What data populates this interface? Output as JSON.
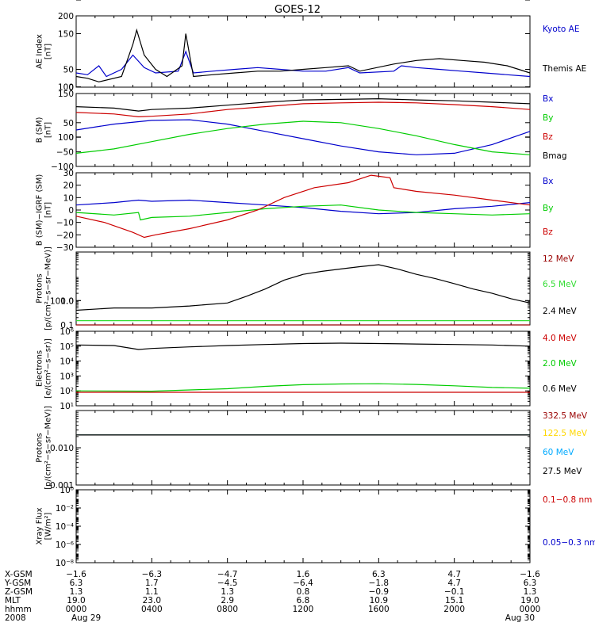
{
  "title": "GOES-12",
  "colors": {
    "black": "#000000",
    "blue": "#0000cc",
    "red": "#cc0000",
    "green": "#00cc00",
    "darkred": "#990000",
    "lightgreen": "#33dd33",
    "cyan": "#00aaff",
    "gold": "#ffd700"
  },
  "chart_data": [
    {
      "type": "line",
      "ylabel": "AE Index\n[nT]",
      "ylim": [
        0,
        200
      ],
      "yticks": [
        "0",
        "50",
        "100",
        "150",
        "200"
      ],
      "series": [
        {
          "name": "Kyoto AE",
          "color": "#0000cc",
          "values": [
            [
              0,
              40
            ],
            [
              0.6,
              35
            ],
            [
              1.2,
              60
            ],
            [
              1.6,
              30
            ],
            [
              2.4,
              50
            ],
            [
              3,
              90
            ],
            [
              3.6,
              55
            ],
            [
              4.2,
              40
            ],
            [
              5.4,
              45
            ],
            [
              5.8,
              100
            ],
            [
              6.2,
              40
            ],
            [
              7.2,
              45
            ],
            [
              8.4,
              50
            ],
            [
              9.6,
              55
            ],
            [
              10.8,
              50
            ],
            [
              12,
              45
            ],
            [
              13.2,
              45
            ],
            [
              14.4,
              55
            ],
            [
              15,
              40
            ],
            [
              16.8,
              45
            ],
            [
              17.2,
              60
            ],
            [
              18,
              55
            ],
            [
              19.2,
              50
            ],
            [
              20.4,
              45
            ],
            [
              21.6,
              40
            ],
            [
              22.8,
              35
            ],
            [
              24,
              30
            ]
          ]
        },
        {
          "name": "Themis AE",
          "color": "#000000",
          "values": [
            [
              0,
              30
            ],
            [
              0.6,
              25
            ],
            [
              1.2,
              15
            ],
            [
              2.4,
              30
            ],
            [
              3,
              120
            ],
            [
              3.2,
              160
            ],
            [
              3.6,
              90
            ],
            [
              4.2,
              50
            ],
            [
              4.8,
              30
            ],
            [
              5.6,
              60
            ],
            [
              5.8,
              150
            ],
            [
              6.2,
              30
            ],
            [
              7.2,
              35
            ],
            [
              8.4,
              40
            ],
            [
              9.6,
              45
            ],
            [
              10.8,
              45
            ],
            [
              12,
              50
            ],
            [
              13.2,
              55
            ],
            [
              14.4,
              60
            ],
            [
              15,
              45
            ],
            [
              16.8,
              65
            ],
            [
              18,
              75
            ],
            [
              19.2,
              80
            ],
            [
              20.4,
              75
            ],
            [
              21.6,
              70
            ],
            [
              22.8,
              60
            ],
            [
              24,
              40
            ]
          ]
        }
      ]
    },
    {
      "type": "line",
      "ylabel": "B (SM)\n[nT]",
      "ylim": [
        -100,
        150
      ],
      "yticks": [
        "−100",
        "−50",
        "0",
        "50",
        "100",
        "150"
      ],
      "series": [
        {
          "name": "Bx",
          "color": "#0000cc",
          "values": [
            [
              0,
              25
            ],
            [
              2,
              45
            ],
            [
              4,
              58
            ],
            [
              6,
              60
            ],
            [
              8,
              45
            ],
            [
              10,
              20
            ],
            [
              12,
              -5
            ],
            [
              14,
              -30
            ],
            [
              16,
              -50
            ],
            [
              18,
              -60
            ],
            [
              20,
              -55
            ],
            [
              22,
              -25
            ],
            [
              24,
              20
            ]
          ]
        },
        {
          "name": "By",
          "color": "#00cc00",
          "values": [
            [
              0,
              -55
            ],
            [
              2,
              -40
            ],
            [
              4,
              -15
            ],
            [
              6,
              10
            ],
            [
              8,
              30
            ],
            [
              10,
              45
            ],
            [
              12,
              55
            ],
            [
              14,
              50
            ],
            [
              16,
              30
            ],
            [
              18,
              5
            ],
            [
              20,
              -25
            ],
            [
              22,
              -50
            ],
            [
              24,
              -60
            ]
          ]
        },
        {
          "name": "Bz",
          "color": "#cc0000",
          "values": [
            [
              0,
              85
            ],
            [
              2,
              80
            ],
            [
              3.3,
              70
            ],
            [
              4,
              72
            ],
            [
              6,
              80
            ],
            [
              8,
              95
            ],
            [
              10,
              105
            ],
            [
              12,
              115
            ],
            [
              14,
              118
            ],
            [
              16,
              120
            ],
            [
              18,
              118
            ],
            [
              20,
              112
            ],
            [
              22,
              105
            ],
            [
              24,
              95
            ]
          ]
        },
        {
          "name": "Bmag",
          "color": "#000000",
          "values": [
            [
              0,
              105
            ],
            [
              2,
              100
            ],
            [
              3.3,
              90
            ],
            [
              4,
              95
            ],
            [
              6,
              100
            ],
            [
              8,
              110
            ],
            [
              10,
              120
            ],
            [
              12,
              128
            ],
            [
              14,
              130
            ],
            [
              16,
              132
            ],
            [
              18,
              128
            ],
            [
              20,
              125
            ],
            [
              22,
              120
            ],
            [
              24,
              115
            ]
          ]
        }
      ]
    },
    {
      "type": "line",
      "ylabel": "B (SM)−IGRF (SM)\n[nT]",
      "ylim": [
        -30,
        30
      ],
      "yticks": [
        "−30",
        "−20",
        "−10",
        "0",
        "10",
        "20",
        "30"
      ],
      "series": [
        {
          "name": "Bx",
          "color": "#0000cc",
          "values": [
            [
              0,
              4
            ],
            [
              2,
              6
            ],
            [
              3.3,
              8
            ],
            [
              4,
              7
            ],
            [
              6,
              8
            ],
            [
              8,
              6
            ],
            [
              10,
              4
            ],
            [
              12,
              2
            ],
            [
              14,
              -1
            ],
            [
              16,
              -3
            ],
            [
              18,
              -2
            ],
            [
              20,
              1
            ],
            [
              22,
              3
            ],
            [
              24,
              6
            ]
          ]
        },
        {
          "name": "By",
          "color": "#00cc00",
          "values": [
            [
              0,
              -2
            ],
            [
              2,
              -4
            ],
            [
              3.3,
              -2
            ],
            [
              3.4,
              -8
            ],
            [
              4,
              -6
            ],
            [
              6,
              -5
            ],
            [
              8,
              -2
            ],
            [
              10,
              1
            ],
            [
              12,
              3
            ],
            [
              14,
              4
            ],
            [
              16,
              0
            ],
            [
              18,
              -2
            ],
            [
              20,
              -3
            ],
            [
              22,
              -4
            ],
            [
              24,
              -3
            ]
          ]
        },
        {
          "name": "Bz",
          "color": "#cc0000",
          "values": [
            [
              0,
              -5
            ],
            [
              1.5,
              -10
            ],
            [
              3,
              -18
            ],
            [
              3.6,
              -22
            ],
            [
              4.2,
              -20
            ],
            [
              6,
              -15
            ],
            [
              8,
              -8
            ],
            [
              9.6,
              0
            ],
            [
              11,
              10
            ],
            [
              12.6,
              18
            ],
            [
              14.4,
              22
            ],
            [
              15.6,
              28
            ],
            [
              16.6,
              26
            ],
            [
              16.8,
              18
            ],
            [
              18,
              15
            ],
            [
              20,
              12
            ],
            [
              22,
              8
            ],
            [
              24,
              4
            ]
          ]
        }
      ]
    },
    {
      "type": "line",
      "ylabel": "Protons\n[p/(cm²−s−sr−MeV)]",
      "yscale": "log",
      "ylim": [
        0.1,
        100
      ],
      "yticks": [
        "0.1",
        "1.0",
        "10.0",
        "100.0"
      ],
      "series": [
        {
          "name": "12 MeV",
          "color": "#990000",
          "values": [
            [
              0,
              0.1
            ],
            [
              24,
              0.1
            ]
          ]
        },
        {
          "name": "6.5 MeV",
          "color": "#33dd33",
          "values": [
            [
              0,
              0.15
            ],
            [
              24,
              0.15
            ]
          ]
        },
        {
          "name": "2.4 MeV",
          "color": "#000000",
          "values": [
            [
              0,
              0.4
            ],
            [
              2,
              0.5
            ],
            [
              4,
              0.5
            ],
            [
              6,
              0.6
            ],
            [
              8,
              0.8
            ],
            [
              9,
              1.5
            ],
            [
              10,
              3
            ],
            [
              11,
              7
            ],
            [
              12,
              12
            ],
            [
              13,
              16
            ],
            [
              14,
              20
            ],
            [
              15,
              25
            ],
            [
              16,
              30
            ],
            [
              17,
              20
            ],
            [
              18,
              12
            ],
            [
              19,
              8
            ],
            [
              20,
              5
            ],
            [
              21,
              3
            ],
            [
              22,
              2
            ],
            [
              23,
              1.2
            ],
            [
              24,
              0.8
            ]
          ]
        }
      ]
    },
    {
      "type": "line",
      "ylabel": "Electrons\n[e/(cm²−s−sr)]",
      "yscale": "log",
      "ylim": [
        10,
        1000000
      ],
      "yticks": [
        "10¹",
        "10²",
        "10³",
        "10⁴",
        "10⁵",
        "10⁶"
      ],
      "series": [
        {
          "name": "4.0 MeV",
          "color": "#cc0000",
          "values": [
            [
              0,
              80
            ],
            [
              24,
              80
            ]
          ]
        },
        {
          "name": "2.0 MeV",
          "color": "#00cc00",
          "values": [
            [
              0,
              100
            ],
            [
              4,
              95
            ],
            [
              8,
              140
            ],
            [
              10,
              200
            ],
            [
              12,
              260
            ],
            [
              14,
              290
            ],
            [
              16,
              300
            ],
            [
              18,
              270
            ],
            [
              20,
              220
            ],
            [
              22,
              170
            ],
            [
              24,
              150
            ]
          ]
        },
        {
          "name": "0.6 MeV",
          "color": "#000000",
          "values": [
            [
              0,
              120000
            ],
            [
              2,
              110000
            ],
            [
              3.3,
              60000
            ],
            [
              4,
              70000
            ],
            [
              6,
              90000
            ],
            [
              8,
              110000
            ],
            [
              10,
              130000
            ],
            [
              12,
              150000
            ],
            [
              14,
              160000
            ],
            [
              16,
              150000
            ],
            [
              18,
              140000
            ],
            [
              20,
              130000
            ],
            [
              22,
              120000
            ],
            [
              24,
              100000
            ]
          ]
        }
      ]
    },
    {
      "type": "line",
      "ylabel": "Protons\n[p/(cm²−s−sr−MeV)]",
      "yscale": "log",
      "ylim": [
        0.001,
        0.1
      ],
      "yticks": [
        "0.001",
        "0.010"
      ],
      "series": [
        {
          "name": "332.5 MeV",
          "color": "#990000",
          "values": [
            [
              0,
              0.022
            ],
            [
              24,
              0.022
            ]
          ]
        },
        {
          "name": "122.5 MeV",
          "color": "#ffd700",
          "values": [
            [
              0,
              0.022
            ],
            [
              24,
              0.022
            ]
          ]
        },
        {
          "name": "60 MeV",
          "color": "#00aaff",
          "values": [
            [
              0,
              0.022
            ],
            [
              24,
              0.022
            ]
          ]
        },
        {
          "name": "27.5 MeV",
          "color": "#000000",
          "values": [
            [
              0,
              0.022
            ],
            [
              24,
              0.022
            ]
          ]
        }
      ]
    },
    {
      "type": "line",
      "ylabel": "Xray Flux\n[W/m²]",
      "yscale": "log",
      "ylim": [
        1e-08,
        1
      ],
      "yticks": [
        "10⁻⁸",
        "10⁻⁶",
        "10⁻⁴",
        "10⁻²",
        "10⁰"
      ],
      "series": [
        {
          "name": "0.1−0.8 nm",
          "color": "#cc0000",
          "values": []
        },
        {
          "name": "0.05−0.3 nm",
          "color": "#0000cc",
          "values": []
        }
      ]
    }
  ],
  "xaxis": {
    "rows": [
      {
        "label": "X-GSM",
        "values": [
          "−1.6",
          "−6.3",
          "−4.7",
          "1.6",
          "6.3",
          "4.7",
          "−1.6"
        ]
      },
      {
        "label": "Y-GSM",
        "values": [
          "6.3",
          "1.7",
          "−4.5",
          "−6.4",
          "−1.8",
          "4.7",
          "6.3"
        ]
      },
      {
        "label": "Z-GSM",
        "values": [
          "1.3",
          "1.1",
          "1.3",
          "0.8",
          "−0.9",
          "−0.1",
          "1.3"
        ]
      },
      {
        "label": "MLT",
        "values": [
          "19.0",
          "23.0",
          "2.9",
          "6.8",
          "10.9",
          "15.1",
          "19.0"
        ]
      },
      {
        "label": "hhmm",
        "values": [
          "0000",
          "0400",
          "0800",
          "1200",
          "1600",
          "2000",
          "0000"
        ]
      },
      {
        "label": "2008",
        "values": [
          "Aug 29",
          "",
          "",
          "",
          "",
          "",
          "Aug 30"
        ]
      }
    ]
  }
}
